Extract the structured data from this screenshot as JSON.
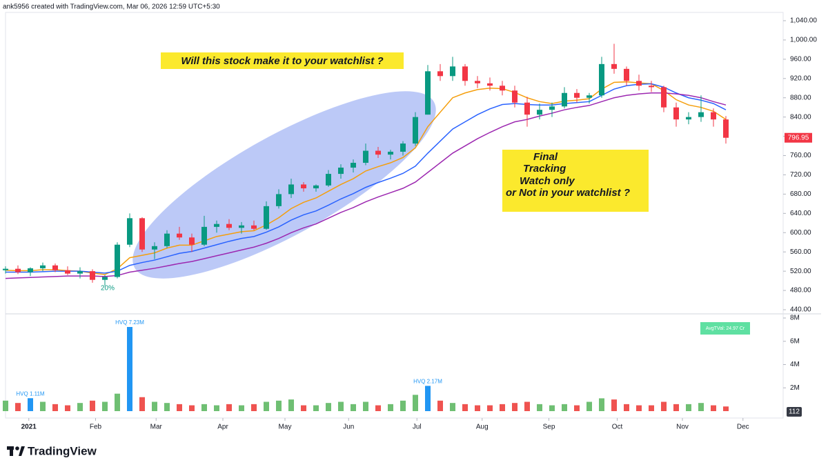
{
  "header": "ank5956 created with TradingView.com, Mar 06, 2026 12:59 UTC+5:30",
  "footer": "TradingView",
  "chart_data": {
    "type": "candlestick",
    "x": [
      0,
      4,
      8,
      12,
      16,
      20,
      24,
      28,
      32,
      36,
      40,
      44,
      48,
      52,
      56,
      60,
      64,
      68,
      72,
      76,
      80,
      84,
      88,
      92,
      96,
      100,
      104,
      108,
      112,
      116,
      120,
      124,
      128,
      132,
      136,
      140,
      144,
      148,
      152,
      156,
      160,
      164,
      168,
      172,
      176,
      180,
      184,
      188,
      192,
      196,
      200,
      204,
      208,
      212,
      216,
      220,
      224,
      228,
      232
    ],
    "open": [
      522,
      525,
      518,
      526,
      532,
      522,
      515,
      520,
      502,
      508,
      575,
      630,
      565,
      572,
      598,
      590,
      575,
      612,
      618,
      610,
      615,
      608,
      655,
      680,
      700,
      692,
      698,
      722,
      735,
      745,
      770,
      762,
      768,
      785,
      845,
      935,
      925,
      945,
      915,
      910,
      905,
      895,
      870,
      845,
      855,
      862,
      890,
      880,
      885,
      950,
      940,
      915,
      905,
      902,
      860,
      835,
      840,
      850,
      835
    ],
    "high": [
      530,
      532,
      528,
      538,
      536,
      530,
      528,
      524,
      512,
      580,
      640,
      632,
      580,
      605,
      612,
      598,
      635,
      625,
      628,
      622,
      625,
      665,
      690,
      712,
      705,
      700,
      730,
      742,
      752,
      785,
      778,
      772,
      790,
      850,
      948,
      950,
      965,
      950,
      925,
      922,
      915,
      905,
      882,
      868,
      870,
      902,
      898,
      890,
      965,
      992,
      945,
      928,
      915,
      905,
      870,
      850,
      885,
      858,
      842
    ],
    "low": [
      515,
      514,
      510,
      520,
      518,
      512,
      505,
      496,
      490,
      505,
      570,
      560,
      545,
      568,
      585,
      560,
      572,
      600,
      605,
      598,
      605,
      606,
      650,
      672,
      685,
      685,
      695,
      712,
      725,
      740,
      755,
      752,
      760,
      780,
      845,
      915,
      915,
      905,
      900,
      895,
      885,
      860,
      820,
      835,
      840,
      858,
      870,
      868,
      880,
      930,
      905,
      895,
      892,
      850,
      820,
      825,
      830,
      820,
      785
    ],
    "close": [
      525,
      518,
      526,
      532,
      522,
      515,
      520,
      502,
      508,
      575,
      630,
      565,
      572,
      598,
      590,
      575,
      612,
      618,
      610,
      615,
      608,
      655,
      680,
      700,
      692,
      698,
      722,
      735,
      745,
      770,
      762,
      768,
      785,
      840,
      935,
      925,
      945,
      915,
      910,
      905,
      895,
      870,
      845,
      855,
      862,
      890,
      880,
      885,
      950,
      940,
      915,
      905,
      902,
      860,
      835,
      840,
      850,
      835,
      796.95
    ],
    "up_color": "#089981",
    "down_color": "#f23645",
    "moving_averages": [
      {
        "color": "#f59e0b",
        "values": [
          522,
          521,
          521,
          523,
          523,
          521,
          520,
          516,
          513,
          525,
          548,
          553,
          558,
          568,
          574,
          574,
          583,
          592,
          597,
          602,
          604,
          616,
          631,
          650,
          663,
          672,
          686,
          700,
          712,
          728,
          737,
          745,
          756,
          776,
          820,
          850,
          880,
          890,
          897,
          900,
          899,
          891,
          880,
          872,
          868,
          873,
          875,
          878,
          898,
          912,
          913,
          911,
          909,
          895,
          876,
          865,
          860,
          852,
          835
        ]
      },
      {
        "color": "#2962ff",
        "values": [
          518,
          518,
          518,
          519,
          520,
          520,
          520,
          518,
          516,
          520,
          532,
          538,
          543,
          550,
          557,
          561,
          568,
          575,
          582,
          588,
          592,
          601,
          612,
          626,
          637,
          645,
          657,
          670,
          681,
          694,
          704,
          713,
          723,
          738,
          765,
          790,
          815,
          830,
          845,
          857,
          866,
          868,
          866,
          865,
          865,
          868,
          870,
          872,
          885,
          898,
          905,
          908,
          909,
          902,
          890,
          880,
          875,
          868,
          855
        ]
      },
      {
        "color": "#9c27b0",
        "values": [
          505,
          506,
          507,
          508,
          509,
          510,
          510,
          510,
          509,
          511,
          518,
          522,
          526,
          531,
          536,
          540,
          546,
          552,
          558,
          564,
          570,
          578,
          588,
          600,
          610,
          618,
          630,
          642,
          652,
          664,
          674,
          683,
          692,
          705,
          725,
          745,
          765,
          780,
          795,
          808,
          820,
          830,
          835,
          842,
          848,
          855,
          860,
          864,
          872,
          880,
          885,
          888,
          890,
          890,
          888,
          885,
          880,
          872,
          865
        ]
      }
    ],
    "xlim": [
      -1,
      251
    ],
    "xticks": [
      {
        "value": 7.5,
        "label": "2021"
      },
      {
        "value": 29,
        "label": "Feb"
      },
      {
        "value": 48.5,
        "label": "Mar"
      },
      {
        "value": 70,
        "label": "Apr"
      },
      {
        "value": 90,
        "label": "May"
      },
      {
        "value": 110.5,
        "label": "Jun"
      },
      {
        "value": 132.5,
        "label": "Jul"
      },
      {
        "value": 153.5,
        "label": "Aug"
      },
      {
        "value": 175,
        "label": "Sep"
      },
      {
        "value": 197,
        "label": "Oct"
      },
      {
        "value": 218,
        "label": "Nov"
      },
      {
        "value": 237.5,
        "label": "Dec"
      }
    ],
    "ylim": [
      440,
      1040
    ],
    "yticks": [
      {
        "value": 440,
        "label": "440.00"
      },
      {
        "value": 480,
        "label": "480.00"
      },
      {
        "value": 520,
        "label": "520.00"
      },
      {
        "value": 560,
        "label": "560.00"
      },
      {
        "value": 600,
        "label": "600.00"
      },
      {
        "value": 640,
        "label": "640.00"
      },
      {
        "value": 680,
        "label": "680.00"
      },
      {
        "value": 720,
        "label": "720.00"
      },
      {
        "value": 760,
        "label": "760.00"
      },
      {
        "value": 800,
        "label": "800.00"
      },
      {
        "value": 840,
        "label": "840.00"
      },
      {
        "value": 880,
        "label": "880.00"
      },
      {
        "value": 920,
        "label": "920.00"
      },
      {
        "value": 960,
        "label": "960.00"
      },
      {
        "value": 1000,
        "label": "1,000.00"
      },
      {
        "value": 1040,
        "label": "1,040.00"
      }
    ],
    "volume": {
      "values": [
        0.9,
        0.7,
        1.11,
        0.8,
        0.6,
        0.5,
        0.7,
        0.9,
        0.8,
        1.5,
        7.23,
        1.2,
        0.8,
        0.7,
        0.6,
        0.5,
        0.6,
        0.5,
        0.6,
        0.5,
        0.6,
        0.8,
        0.9,
        1.0,
        0.5,
        0.5,
        0.7,
        0.8,
        0.6,
        0.8,
        0.5,
        0.6,
        0.9,
        1.4,
        2.17,
        0.9,
        0.7,
        0.6,
        0.5,
        0.5,
        0.6,
        0.7,
        0.8,
        0.6,
        0.5,
        0.6,
        0.5,
        0.8,
        1.1,
        1.0,
        0.6,
        0.5,
        0.5,
        0.8,
        0.6,
        0.6,
        0.7,
        0.5,
        0.4
      ],
      "value_labels": [
        null,
        null,
        "HVQ 1.11M",
        null,
        null,
        null,
        null,
        null,
        null,
        null,
        "HVQ 7.23M",
        null,
        null,
        null,
        null,
        null,
        null,
        null,
        null,
        null,
        null,
        null,
        null,
        null,
        null,
        null,
        null,
        null,
        null,
        null,
        null,
        null,
        null,
        null,
        "HVQ 2.17M",
        null,
        null,
        null,
        null,
        null,
        null,
        null,
        null,
        null,
        null,
        null,
        null,
        null,
        null,
        null,
        null,
        null,
        null,
        null,
        null,
        null,
        null,
        null,
        null
      ],
      "highlight_color": "#2196f3",
      "up_color": "#6fbf73",
      "down_color": "#ef5350",
      "ylim": [
        0,
        8
      ],
      "yticks": [
        {
          "value": 2,
          "label": "2M"
        },
        {
          "value": 4,
          "label": "4M"
        },
        {
          "value": 6,
          "label": "6M"
        },
        {
          "value": 8,
          "label": "8M"
        }
      ]
    },
    "annotations": [
      "Will this stock make it to your watchlist ?"
    ],
    "note_lines": [
      "Final",
      "Tracking",
      "Watch only",
      "or Not in your watchlist ?"
    ],
    "low_marker": "20%",
    "avg_value": "AvgTVal: 24.97 Cr",
    "countdown": "112"
  }
}
